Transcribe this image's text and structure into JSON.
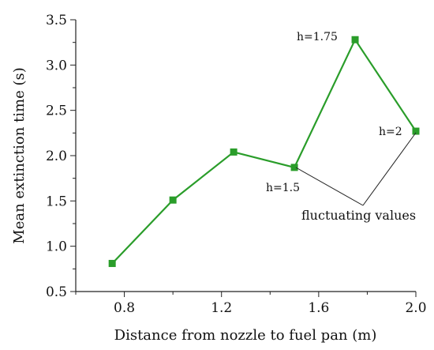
{
  "chart_data": {
    "type": "line",
    "xlabel": "Distance from nozzle to fuel pan (m)",
    "ylabel": "Mean extinction time (s)",
    "xlim": [
      0.6,
      2.0
    ],
    "ylim": [
      0.5,
      3.5
    ],
    "xticks": [
      "0.8",
      "1.2",
      "1.6",
      "2.0"
    ],
    "yticks": [
      "0.5",
      "1.0",
      "1.5",
      "2.0",
      "2.5",
      "3.0",
      "3.5"
    ],
    "grid": false,
    "series": [
      {
        "color": "#2a9d2a",
        "x": [
          0.75,
          1.0,
          1.25,
          1.5,
          1.75,
          2.0
        ],
        "y": [
          0.81,
          1.51,
          2.04,
          1.87,
          3.28,
          2.27
        ]
      }
    ],
    "annotations": {
      "h15": "h=1.5",
      "h175": "h=1.75",
      "h2": "h=2",
      "fluct": "fluctuating values"
    }
  }
}
